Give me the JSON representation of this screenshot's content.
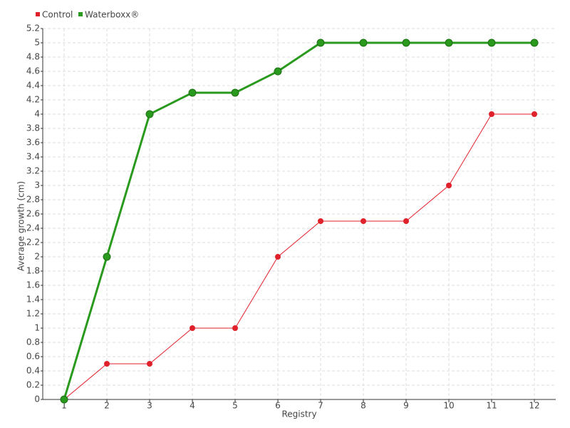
{
  "chart_data": {
    "type": "line",
    "x_label": "Registry",
    "y_label": "Average growth (cm)",
    "categories": [
      "1",
      "2",
      "3",
      "4",
      "5",
      "6",
      "7",
      "8",
      "9",
      "10",
      "11",
      "12"
    ],
    "series": [
      {
        "name": "Control",
        "color": "#e0202a",
        "values": [
          0,
          0.5,
          0.5,
          1,
          1,
          2,
          2.5,
          2.5,
          2.5,
          3,
          4,
          4
        ]
      },
      {
        "name": "Waterboxx®",
        "color": "#2a9a1e",
        "values": [
          0,
          2,
          4,
          4.3,
          4.3,
          4.6,
          5,
          5,
          5,
          5,
          5,
          5
        ]
      }
    ],
    "ylim": [
      0,
      5.2
    ],
    "yticks": [
      0,
      0.2,
      0.4,
      0.6,
      0.8,
      1,
      1.2,
      1.4,
      1.6,
      1.8,
      2,
      2.2,
      2.4,
      2.6,
      2.8,
      3,
      3.2,
      3.4,
      3.6,
      3.8,
      4,
      4.2,
      4.4,
      4.6,
      4.8,
      5,
      5.2
    ],
    "grid": true,
    "legend": "top-left"
  }
}
